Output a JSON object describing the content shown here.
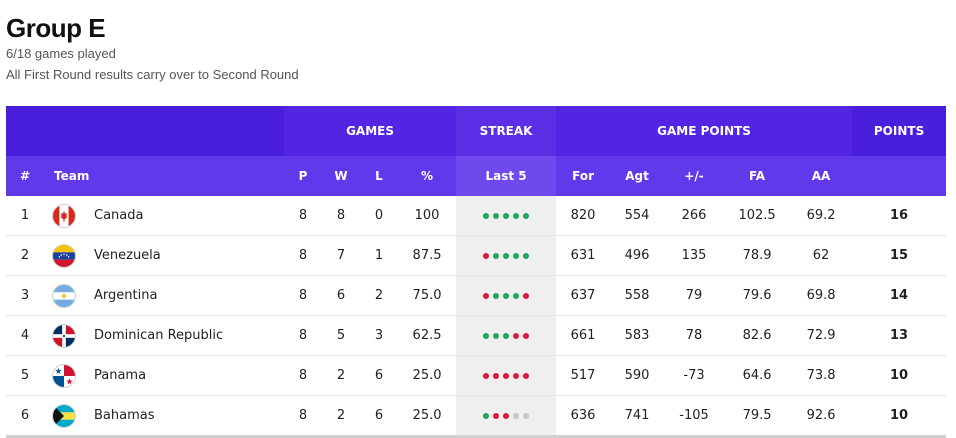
{
  "header": {
    "title": "Group E",
    "games_played": "6/18 games played",
    "note": "All First Round results carry over to Second Round"
  },
  "table": {
    "group_headers": {
      "games": "GAMES",
      "streak": "STREAK",
      "game_points": "GAME POINTS",
      "points": "POINTS"
    },
    "columns": {
      "rank": "#",
      "team": "Team",
      "p": "P",
      "w": "W",
      "l": "L",
      "pct": "%",
      "last5": "Last 5",
      "for": "For",
      "agt": "Agt",
      "plus_minus": "+/-",
      "fa": "FA",
      "aa": "AA"
    },
    "rows": [
      {
        "rank": "1",
        "team": "Canada",
        "flag_icon": "canada-flag-icon",
        "p": "8",
        "w": "8",
        "l": "0",
        "pct": "100",
        "last5": [
          "W",
          "W",
          "W",
          "W",
          "W"
        ],
        "for": "820",
        "agt": "554",
        "pm": "266",
        "fa": "102.5",
        "aa": "69.2",
        "pts": "16"
      },
      {
        "rank": "2",
        "team": "Venezuela",
        "flag_icon": "venezuela-flag-icon",
        "p": "8",
        "w": "7",
        "l": "1",
        "pct": "87.5",
        "last5": [
          "L",
          "W",
          "W",
          "W",
          "W"
        ],
        "for": "631",
        "agt": "496",
        "pm": "135",
        "fa": "78.9",
        "aa": "62",
        "pts": "15"
      },
      {
        "rank": "3",
        "team": "Argentina",
        "flag_icon": "argentina-flag-icon",
        "p": "8",
        "w": "6",
        "l": "2",
        "pct": "75.0",
        "last5": [
          "L",
          "W",
          "W",
          "W",
          "L"
        ],
        "for": "637",
        "agt": "558",
        "pm": "79",
        "fa": "79.6",
        "aa": "69.8",
        "pts": "14"
      },
      {
        "rank": "4",
        "team": "Dominican Republic",
        "flag_icon": "dominican-republic-flag-icon",
        "p": "8",
        "w": "5",
        "l": "3",
        "pct": "62.5",
        "last5": [
          "W",
          "W",
          "W",
          "L",
          "L"
        ],
        "for": "661",
        "agt": "583",
        "pm": "78",
        "fa": "82.6",
        "aa": "72.9",
        "pts": "13"
      },
      {
        "rank": "5",
        "team": "Panama",
        "flag_icon": "panama-flag-icon",
        "p": "8",
        "w": "2",
        "l": "6",
        "pct": "25.0",
        "last5": [
          "L",
          "L",
          "L",
          "L",
          "L"
        ],
        "for": "517",
        "agt": "590",
        "pm": "-73",
        "fa": "64.6",
        "aa": "73.8",
        "pts": "10"
      },
      {
        "rank": "6",
        "team": "Bahamas",
        "flag_icon": "bahamas-flag-icon",
        "p": "8",
        "w": "2",
        "l": "6",
        "pct": "25.0",
        "last5": [
          "W",
          "L",
          "L",
          "N",
          "N"
        ],
        "for": "636",
        "agt": "741",
        "pm": "-105",
        "fa": "79.5",
        "aa": "92.6",
        "pts": "10"
      }
    ]
  },
  "colors": {
    "header_purple": "#4617d6",
    "subheader_purple": "#6138ea",
    "win": "#1fa85a",
    "loss": "#e0193c",
    "not_played": "#c8c8c8"
  }
}
